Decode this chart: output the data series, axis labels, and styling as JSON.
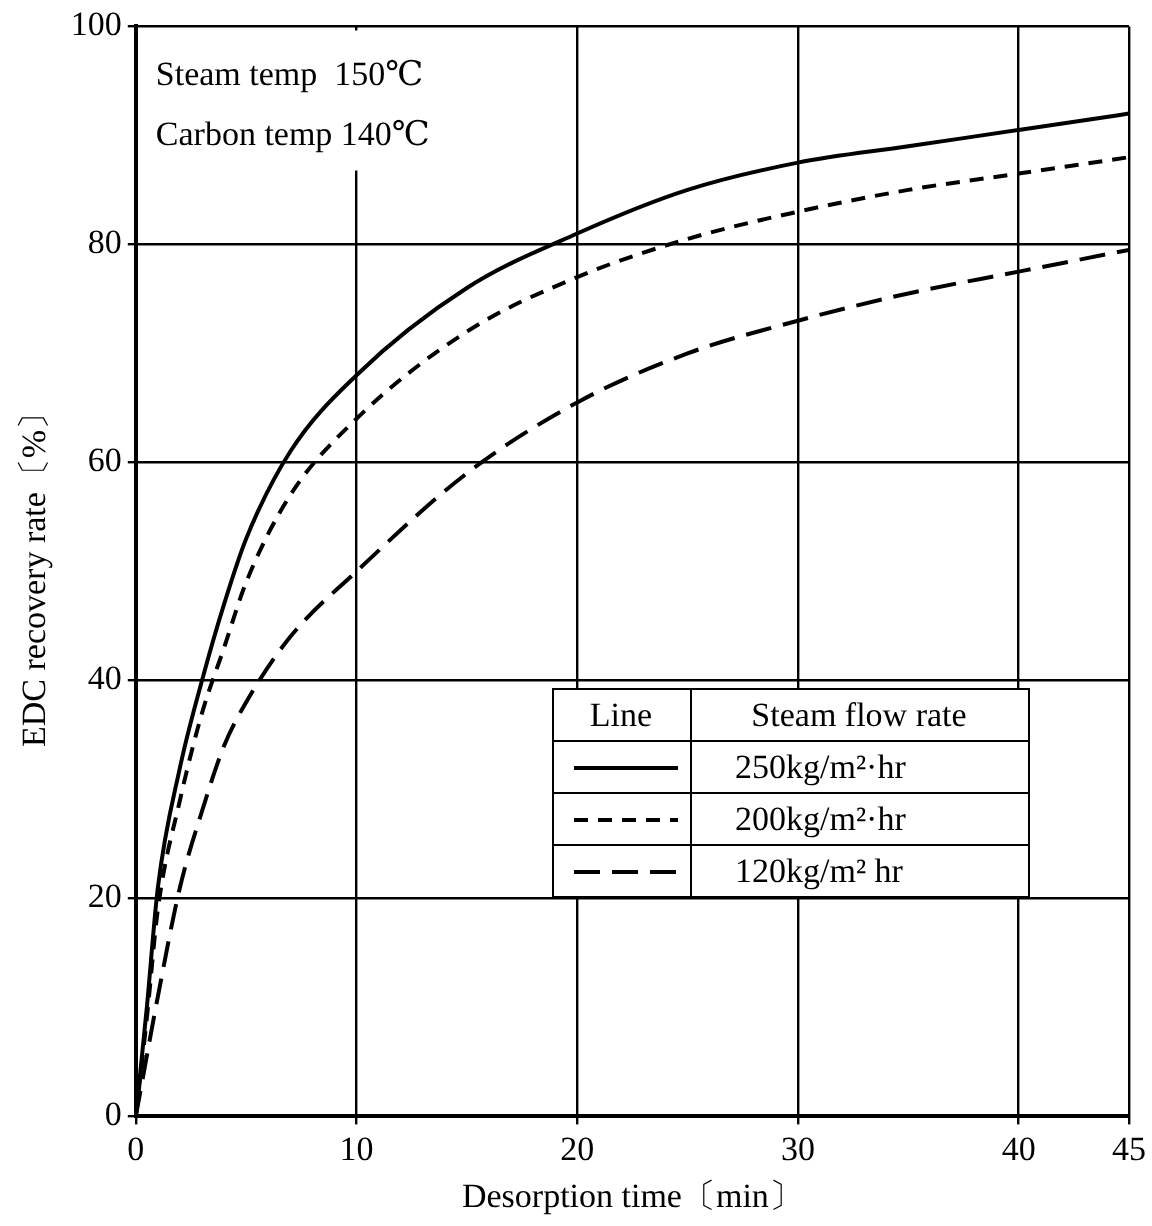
{
  "chart_data": {
    "type": "line",
    "xlabel": "Desorption time〔min〕",
    "ylabel": "EDC recovery rate〔%〕",
    "legend_title": "Steam flow rate",
    "annotations": [
      "Steam temp  150℃",
      "Carbon temp 140℃",
      "Line"
    ],
    "xlim": [
      0,
      45
    ],
    "xticks": [
      0,
      10,
      20,
      30,
      40,
      45
    ],
    "ylim": [
      0,
      100
    ],
    "yticks": [
      0,
      20,
      40,
      60,
      80,
      100
    ],
    "grid": true,
    "legend": "bottom right",
    "marker": "none",
    "series": [
      {
        "name": "250kg/m²·hr",
        "color": "#000000",
        "line_style": "solid",
        "x": [
          0,
          0.5,
          1,
          2,
          3,
          4,
          5,
          7,
          10,
          15,
          20,
          25,
          30,
          35,
          40,
          45
        ],
        "values": [
          0,
          10,
          21,
          32,
          40,
          47,
          53,
          61,
          68,
          76,
          81,
          85,
          87.5,
          89,
          90.5,
          92
        ]
      },
      {
        "name": "200kg/m²·hr",
        "color": "#000000",
        "line_style": "dashed",
        "x": [
          0,
          0.5,
          1,
          2,
          3,
          4,
          5,
          7,
          10,
          15,
          20,
          25,
          30,
          35,
          40,
          45
        ],
        "values": [
          0,
          9,
          19,
          29,
          37,
          43,
          49,
          57,
          64,
          72,
          77,
          80.5,
          83,
          85,
          86.5,
          88
        ]
      },
      {
        "name": "120kg/m² hr",
        "color": "#000000",
        "line_style": "dashed",
        "x": [
          0,
          1,
          2,
          3,
          4,
          5,
          7,
          10,
          15,
          20,
          25,
          30,
          35,
          40,
          45
        ],
        "values": [
          0,
          11,
          21,
          28,
          34,
          38,
          44,
          50,
          59,
          65.5,
          70,
          73,
          75.5,
          77.5,
          79.5
        ]
      }
    ]
  }
}
